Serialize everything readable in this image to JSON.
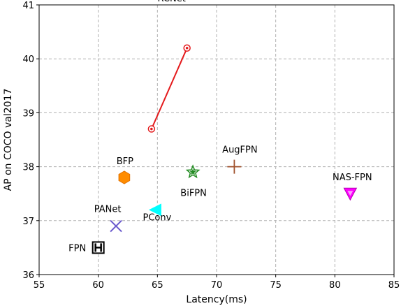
{
  "chart_data": {
    "type": "scatter",
    "xlabel": "Latency(ms)",
    "ylabel": "AP on COCO val2017",
    "xlim": [
      55,
      85
    ],
    "ylim": [
      36,
      41
    ],
    "xticks": [
      55,
      60,
      65,
      70,
      75,
      80,
      85
    ],
    "yticks": [
      36,
      37,
      38,
      39,
      40,
      41
    ],
    "grid": true,
    "series": [
      {
        "name": "RCNet",
        "marker": "circle-dot",
        "color": "#e41a1c",
        "line": true,
        "points": [
          {
            "x": 64.5,
            "y": 38.7
          },
          {
            "x": 67.5,
            "y": 40.2
          }
        ]
      },
      {
        "name": "AugFPN",
        "marker": "plus",
        "color": "#a0522d",
        "line": false,
        "points": [
          {
            "x": 71.5,
            "y": 38.0
          }
        ]
      },
      {
        "name": "BFP",
        "marker": "hexagon",
        "color": "#ff8c00",
        "line": false,
        "points": [
          {
            "x": 62.2,
            "y": 37.8
          }
        ]
      },
      {
        "name": "BiFPN",
        "marker": "star",
        "color": "#228b22",
        "line": false,
        "points": [
          {
            "x": 68.0,
            "y": 37.9
          }
        ]
      },
      {
        "name": "NAS-FPN",
        "marker": "triangle-down",
        "color": "#ff00ff",
        "line": false,
        "points": [
          {
            "x": 81.3,
            "y": 37.5
          }
        ]
      },
      {
        "name": "PANet",
        "marker": "x",
        "color": "#6a5acd",
        "line": false,
        "points": [
          {
            "x": 61.5,
            "y": 36.9
          }
        ]
      },
      {
        "name": "PConv",
        "marker": "triangle-left",
        "color": "#00ffff",
        "line": false,
        "points": [
          {
            "x": 64.8,
            "y": 37.2
          }
        ]
      },
      {
        "name": "FPN",
        "marker": "square-h",
        "color": "#000000",
        "line": false,
        "points": [
          {
            "x": 60.0,
            "y": 36.5
          }
        ]
      }
    ]
  }
}
